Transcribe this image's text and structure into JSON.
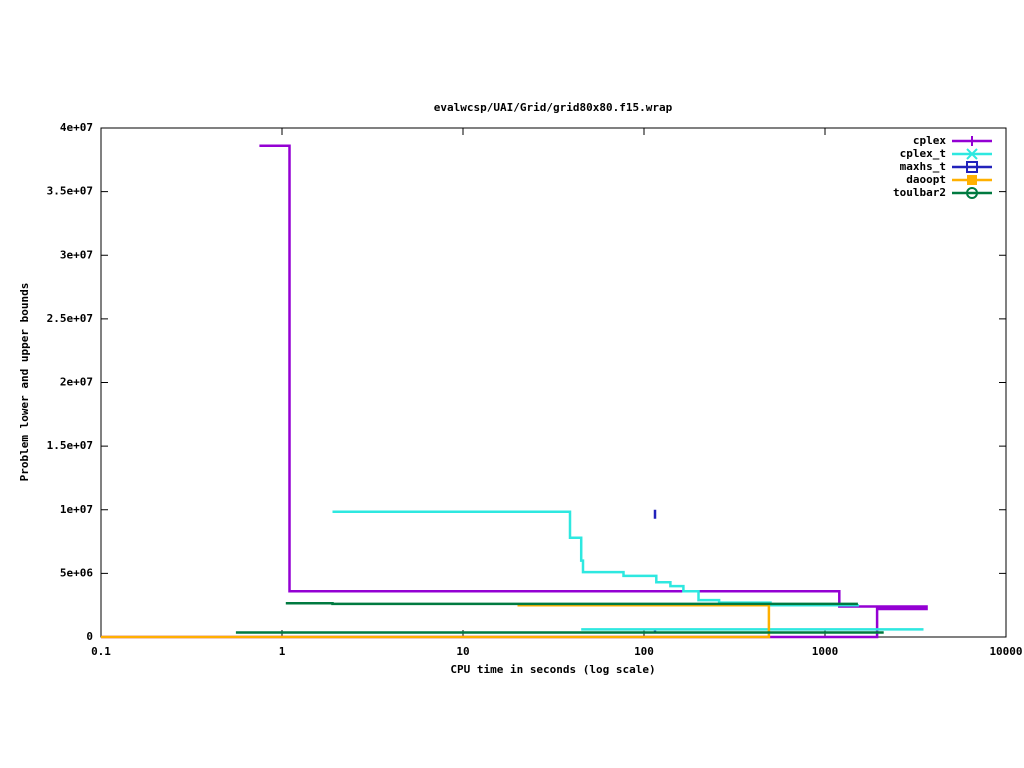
{
  "chart_data": {
    "type": "line",
    "title": "evalwcsp/UAI/Grid/grid80x80.f15.wrap",
    "x_label": "CPU time in seconds (log scale)",
    "y_label": "Problem lower and upper bounds",
    "x_log_scale": true,
    "xlim": [
      0.1,
      10000
    ],
    "xticks": [
      0.1,
      1,
      10,
      100,
      1000,
      10000
    ],
    "ylim": [
      0,
      40000000
    ],
    "yticks": [
      0,
      {
        "value": 5000000,
        "label": "5e+06"
      },
      {
        "value": 10000000,
        "label": "1e+07"
      },
      {
        "value": 15000000,
        "label": "1.5e+07"
      },
      {
        "value": 20000000,
        "label": "2e+07"
      },
      {
        "value": 25000000,
        "label": "2.5e+07"
      },
      {
        "value": 30000000,
        "label": "3e+07"
      },
      {
        "value": 35000000,
        "label": "3.5e+07"
      },
      {
        "value": 40000000,
        "label": "4e+07"
      }
    ],
    "legend": "top-right",
    "series": [
      {
        "name": "cplex",
        "color": "#9400d3",
        "marker": "plus",
        "x": [
          0.75,
          1.1,
          1.1,
          1200,
          1200,
          3700,
          null,
          0.1,
          1940,
          1940,
          3700
        ],
        "values": [
          38600000,
          38600000,
          3600000,
          3600000,
          2400000,
          2400000,
          null,
          0,
          0,
          2200000,
          2200000
        ]
      },
      {
        "name": "cplex_t",
        "color": "#2ee8e0",
        "marker": "cross",
        "x": [
          1.9,
          39,
          39,
          45,
          45,
          46,
          46,
          77,
          77,
          117,
          117,
          140,
          140,
          165,
          165,
          200,
          200,
          260,
          260,
          500,
          500,
          1540,
          null,
          45,
          3500
        ],
        "values": [
          9850000,
          9850000,
          7800000,
          7800000,
          6000000,
          6000000,
          5100000,
          5100000,
          4800000,
          4800000,
          4300000,
          4300000,
          4000000,
          4000000,
          3600000,
          3600000,
          2900000,
          2900000,
          2700000,
          2700000,
          2500000,
          2500000,
          null,
          600000,
          600000
        ]
      },
      {
        "name": "maxhs_t",
        "color": "#2222bb",
        "marker": "square",
        "x": [
          115,
          115,
          null,
          115,
          115
        ],
        "values": [
          9300000,
          10000000,
          null,
          300000,
          500000
        ]
      },
      {
        "name": "daoopt",
        "color": "#ffb000",
        "marker": "filled-square",
        "x": [
          20,
          490,
          490,
          0.1,
          null
        ],
        "values": [
          2500000,
          2500000,
          0,
          0,
          null
        ]
      },
      {
        "name": "toulbar2",
        "color": "#007a40",
        "marker": "circle",
        "x": [
          1.05,
          1.9,
          1.9,
          1520,
          null,
          0.556,
          2110
        ],
        "values": [
          2650000,
          2650000,
          2600000,
          2600000,
          null,
          350000,
          350000
        ]
      }
    ]
  }
}
